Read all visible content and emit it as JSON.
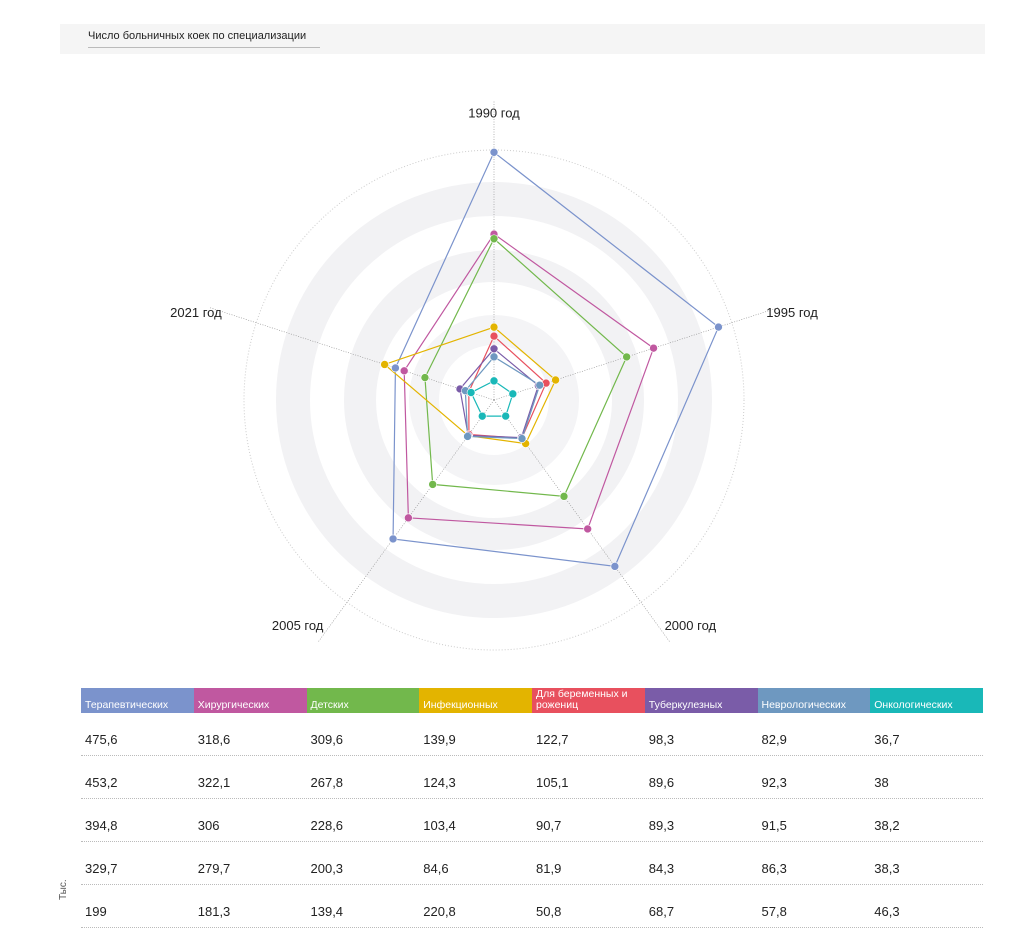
{
  "chart_data": {
    "type": "radar",
    "title": "Число больничных коек по специализации",
    "categories": [
      "1990 год",
      "1995 год",
      "2000 год",
      "2005 год",
      "2021 год"
    ],
    "rlim": [
      0,
      480
    ],
    "unit": "Тыс.",
    "series": [
      {
        "name": "Терапевтических",
        "color": "#7b93cc",
        "values": [
          475.6,
          453.2,
          394.8,
          329.7,
          199
        ],
        "value_labels": [
          "475,6",
          "453,2",
          "394,8",
          "329,7",
          "199"
        ]
      },
      {
        "name": "Хирургических",
        "color": "#c058a0",
        "values": [
          318.6,
          322.1,
          306,
          279.7,
          181.3
        ],
        "value_labels": [
          "318,6",
          "322,1",
          "306",
          "279,7",
          "181,3"
        ]
      },
      {
        "name": "Детских",
        "color": "#72b84c",
        "values": [
          309.6,
          267.8,
          228.6,
          200.3,
          139.4
        ],
        "value_labels": [
          "309,6",
          "267,8",
          "228,6",
          "200,3",
          "139,4"
        ]
      },
      {
        "name": "Инфекционных",
        "color": "#e3b400",
        "values": [
          139.9,
          124.3,
          103.4,
          84.6,
          220.8
        ],
        "value_labels": [
          "139,9",
          "124,3",
          "103,4",
          "84,6",
          "220,8"
        ]
      },
      {
        "name": "Для беременных и рожениц",
        "color": "#e8505e",
        "values": [
          122.7,
          105.1,
          90.7,
          81.9,
          50.8
        ],
        "value_labels": [
          "122,7",
          "105,1",
          "90,7",
          "81,9",
          "50,8"
        ]
      },
      {
        "name": "Туберкулезных",
        "color": "#7a5ca8",
        "values": [
          98.3,
          89.6,
          89.3,
          84.3,
          68.7
        ],
        "value_labels": [
          "98,3",
          "89,6",
          "89,3",
          "84,3",
          "68,7"
        ]
      },
      {
        "name": "Неврологических",
        "color": "#6e98c0",
        "values": [
          82.9,
          92.3,
          91.5,
          86.3,
          57.8
        ],
        "value_labels": [
          "82,9",
          "92,3",
          "91,5",
          "86,3",
          "57,8"
        ]
      },
      {
        "name": "Онкологических",
        "color": "#19b8b8",
        "values": [
          36.7,
          38,
          38.2,
          38.3,
          46.3
        ],
        "value_labels": [
          "36,7",
          "38",
          "38,2",
          "38,3",
          "46,3"
        ]
      }
    ]
  }
}
